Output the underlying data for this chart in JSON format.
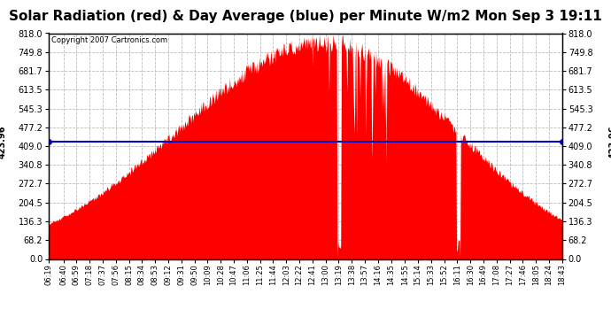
{
  "title": "Solar Radiation (red) & Day Average (blue) per Minute W/m2 Mon Sep 3 19:11",
  "copyright": "Copyright 2007 Cartronics.com",
  "avg_value": 423.96,
  "ymax": 818.0,
  "ymin": 0.0,
  "yticks": [
    0.0,
    68.2,
    136.3,
    204.5,
    272.7,
    340.8,
    409.0,
    477.2,
    545.3,
    613.5,
    681.7,
    749.8,
    818.0
  ],
  "background_color": "#ffffff",
  "grid_color": "#aaaaaa",
  "fill_color": "#ff0000",
  "line_color": "#0000cc",
  "title_fontsize": 11,
  "time_labels": [
    "06:19",
    "06:40",
    "06:59",
    "07:18",
    "07:37",
    "07:56",
    "08:15",
    "08:34",
    "08:53",
    "09:12",
    "09:31",
    "09:50",
    "10:09",
    "10:28",
    "10:47",
    "11:06",
    "11:25",
    "11:44",
    "12:03",
    "12:22",
    "12:41",
    "13:00",
    "13:19",
    "13:38",
    "13:57",
    "14:16",
    "14:35",
    "14:55",
    "15:14",
    "15:33",
    "15:52",
    "16:11",
    "16:30",
    "16:49",
    "17:08",
    "17:27",
    "17:46",
    "18:05",
    "18:24",
    "18:43"
  ]
}
